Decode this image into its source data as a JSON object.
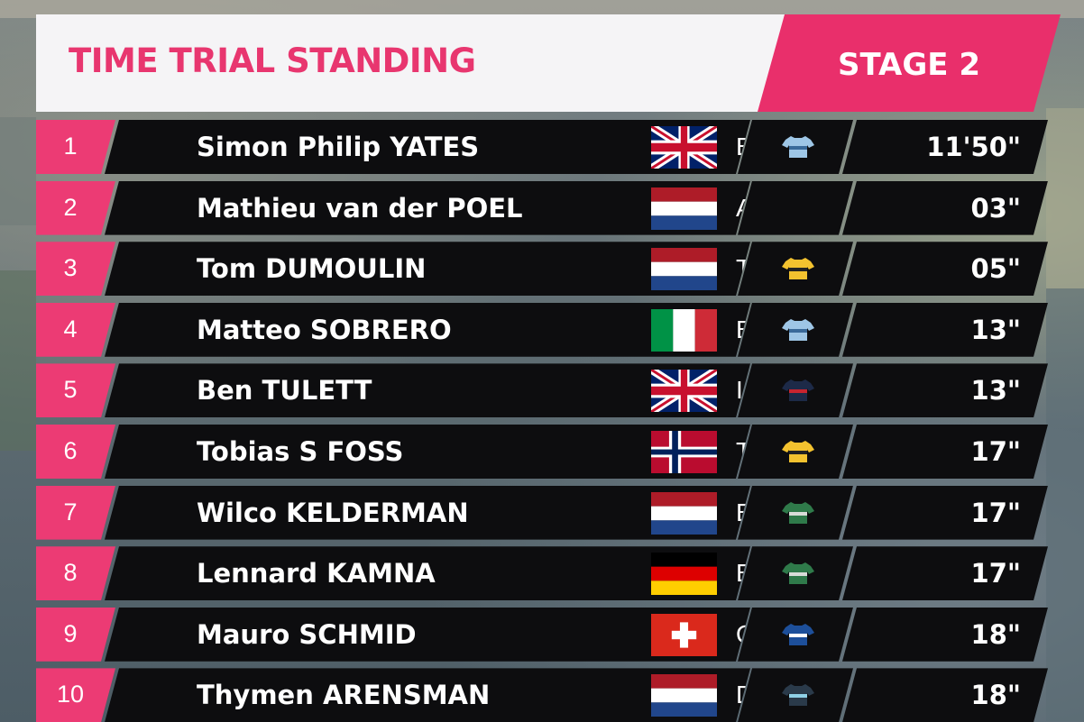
{
  "header": {
    "title": "TIME TRIAL STANDING",
    "stage": "STAGE 2"
  },
  "colors": {
    "accent_pink": "#e92f6b",
    "row_background": "#0d0d0f",
    "header_background": "#f5f4f6"
  },
  "riders": [
    {
      "pos": "1",
      "name": "Simon Philip YATES",
      "flag": "uk-flag-icon",
      "team": "BEX",
      "jersey": "jersey-bex-icon",
      "time": "11'50\""
    },
    {
      "pos": "2",
      "name": "Mathieu van der POEL",
      "flag": "netherlands-flag-icon",
      "team": "AFC",
      "jersey": "",
      "time": "03\""
    },
    {
      "pos": "3",
      "name": "Tom DUMOULIN",
      "flag": "netherlands-flag-icon",
      "team": "TJV",
      "jersey": "jersey-tjv-icon",
      "time": "05\""
    },
    {
      "pos": "4",
      "name": "Matteo SOBRERO",
      "flag": "italy-flag-icon",
      "team": "BEX",
      "jersey": "jersey-bex-icon",
      "time": "13\""
    },
    {
      "pos": "5",
      "name": "Ben TULETT",
      "flag": "uk-flag-icon",
      "team": "IGD",
      "jersey": "jersey-igd-icon",
      "time": "13\""
    },
    {
      "pos": "6",
      "name": "Tobias S FOSS",
      "flag": "norway-flag-icon",
      "team": "TJV",
      "jersey": "jersey-tjv-icon",
      "time": "17\""
    },
    {
      "pos": "7",
      "name": "Wilco KELDERMAN",
      "flag": "netherlands-flag-icon",
      "team": "BOH",
      "jersey": "jersey-boh-icon",
      "time": "17\""
    },
    {
      "pos": "8",
      "name": "Lennard KAMNA",
      "flag": "germany-flag-icon",
      "team": "BOH",
      "jersey": "jersey-boh-icon",
      "time": "17\""
    },
    {
      "pos": "9",
      "name": "Mauro SCHMID",
      "flag": "switzerland-flag-icon",
      "team": "QST",
      "jersey": "jersey-qst-icon",
      "time": "18\""
    },
    {
      "pos": "10",
      "name": "Thymen ARENSMAN",
      "flag": "netherlands-flag-icon",
      "team": "DSM",
      "jersey": "jersey-dsm-icon",
      "time": "18\""
    }
  ]
}
